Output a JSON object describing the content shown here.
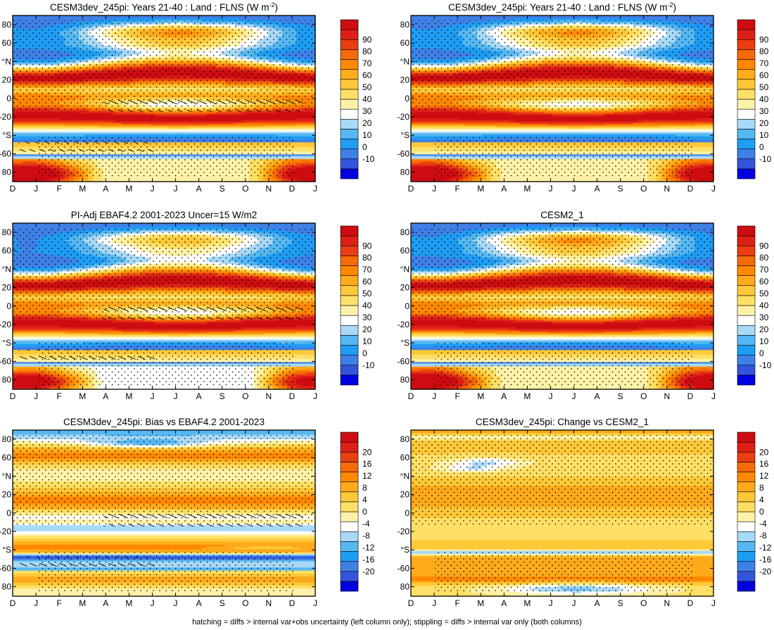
{
  "figure": {
    "footnote": "hatching = diffs > internal var+obs uncertainty (left column only); stippling = diffs > internal var only (both columns)"
  },
  "chart_data": [
    {
      "type": "heatmap",
      "title": "CESM3dev_245pi: Years 21-40 : Land : FLNS (W m",
      "title_sup": "-2",
      "title_tail": ")",
      "x_ticks": [
        "D",
        "J",
        "F",
        "M",
        "A",
        "M",
        "J",
        "J",
        "A",
        "S",
        "O",
        "N",
        "D",
        "J"
      ],
      "y_ticks": [
        "80",
        "60",
        "°N",
        "20",
        "0",
        "-20",
        "°S",
        "-60",
        "80"
      ],
      "colorbar": [
        "90",
        "80",
        "70",
        "60",
        "50",
        "40",
        "30",
        "20",
        "10",
        "0",
        "-10"
      ],
      "palette": "full",
      "pattern": "model",
      "hatching": true
    },
    {
      "type": "heatmap",
      "title": "CESM3dev_245pi: Years 21-40 : Land : FLNS (W m",
      "title_sup": "-2",
      "title_tail": ")",
      "x_ticks": [
        "D",
        "J",
        "F",
        "M",
        "A",
        "M",
        "J",
        "J",
        "A",
        "S",
        "O",
        "N",
        "D",
        "J"
      ],
      "y_ticks": [
        "80",
        "60",
        "°N",
        "20",
        "0",
        "-20",
        "°S",
        "-60",
        "80"
      ],
      "colorbar": [
        "90",
        "80",
        "70",
        "60",
        "50",
        "40",
        "30",
        "20",
        "10",
        "0",
        "-10"
      ],
      "palette": "full",
      "pattern": "model",
      "hatching": false
    },
    {
      "type": "heatmap",
      "title": "PI-Adj EBAF4.2 2001-2023 Uncer=15 W/m2",
      "x_ticks": [
        "D",
        "J",
        "F",
        "M",
        "A",
        "M",
        "J",
        "J",
        "A",
        "S",
        "O",
        "N",
        "D",
        "J"
      ],
      "y_ticks": [
        "80",
        "60",
        "°N",
        "20",
        "0",
        "-20",
        "°S",
        "-60",
        "80"
      ],
      "colorbar": [
        "90",
        "80",
        "70",
        "60",
        "50",
        "40",
        "30",
        "20",
        "10",
        "0",
        "-10"
      ],
      "palette": "full",
      "pattern": "obs",
      "hatching": true
    },
    {
      "type": "heatmap",
      "title": "CESM2_1",
      "x_ticks": [
        "D",
        "J",
        "F",
        "M",
        "A",
        "M",
        "J",
        "J",
        "A",
        "S",
        "O",
        "N",
        "D",
        "J"
      ],
      "y_ticks": [
        "80",
        "60",
        "°N",
        "20",
        "0",
        "-20",
        "°S",
        "-60",
        "80"
      ],
      "colorbar": [
        "90",
        "80",
        "70",
        "60",
        "50",
        "40",
        "30",
        "20",
        "10",
        "0",
        "-10"
      ],
      "palette": "full",
      "pattern": "model",
      "hatching": false
    },
    {
      "type": "heatmap",
      "title": "CESM3dev_245pi: Bias vs EBAF4.2 2001-2023",
      "x_ticks": [
        "D",
        "J",
        "F",
        "M",
        "A",
        "M",
        "J",
        "J",
        "A",
        "S",
        "O",
        "N",
        "D",
        "J"
      ],
      "y_ticks": [
        "80",
        "60",
        "°N",
        "20",
        "0",
        "-20",
        "°S",
        "-60",
        "80"
      ],
      "colorbar": [
        "20",
        "16",
        "12",
        "8",
        "4",
        "0",
        "-4",
        "-8",
        "-12",
        "-16",
        "-20"
      ],
      "palette": "diff",
      "pattern": "bias",
      "hatching": true
    },
    {
      "type": "heatmap",
      "title": "CESM3dev_245pi: Change vs CESM2_1",
      "x_ticks": [
        "D",
        "J",
        "F",
        "M",
        "A",
        "M",
        "J",
        "J",
        "A",
        "S",
        "O",
        "N",
        "D",
        "J"
      ],
      "y_ticks": [
        "80",
        "60",
        "°N",
        "20",
        "0",
        "-20",
        "°S",
        "-60",
        "80"
      ],
      "colorbar": [
        "20",
        "16",
        "12",
        "8",
        "4",
        "0",
        "-4",
        "-8",
        "-12",
        "-16",
        "-20"
      ],
      "palette": "diff",
      "pattern": "change",
      "hatching": false
    }
  ],
  "colors": {
    "full_scale": [
      "#0000e0",
      "#3355dd",
      "#3f80e6",
      "#1e9df5",
      "#55b8f2",
      "#a8d9f7",
      "#ffffff",
      "#fff2a8",
      "#ffe066",
      "#ffc838",
      "#ffaa1a",
      "#ff8800",
      "#f76a08",
      "#ea3e12",
      "#dd2016",
      "#cc0c10"
    ],
    "diff_scale": [
      "#0000e0",
      "#3355dd",
      "#3f80e6",
      "#1e9df5",
      "#55b8f2",
      "#a8d9f7",
      "#ffffff",
      "#fff2a8",
      "#ffe066",
      "#ffc838",
      "#ffaa1a",
      "#ff8800",
      "#f76a08",
      "#ea3e12",
      "#dd2016",
      "#cc0c10"
    ]
  }
}
